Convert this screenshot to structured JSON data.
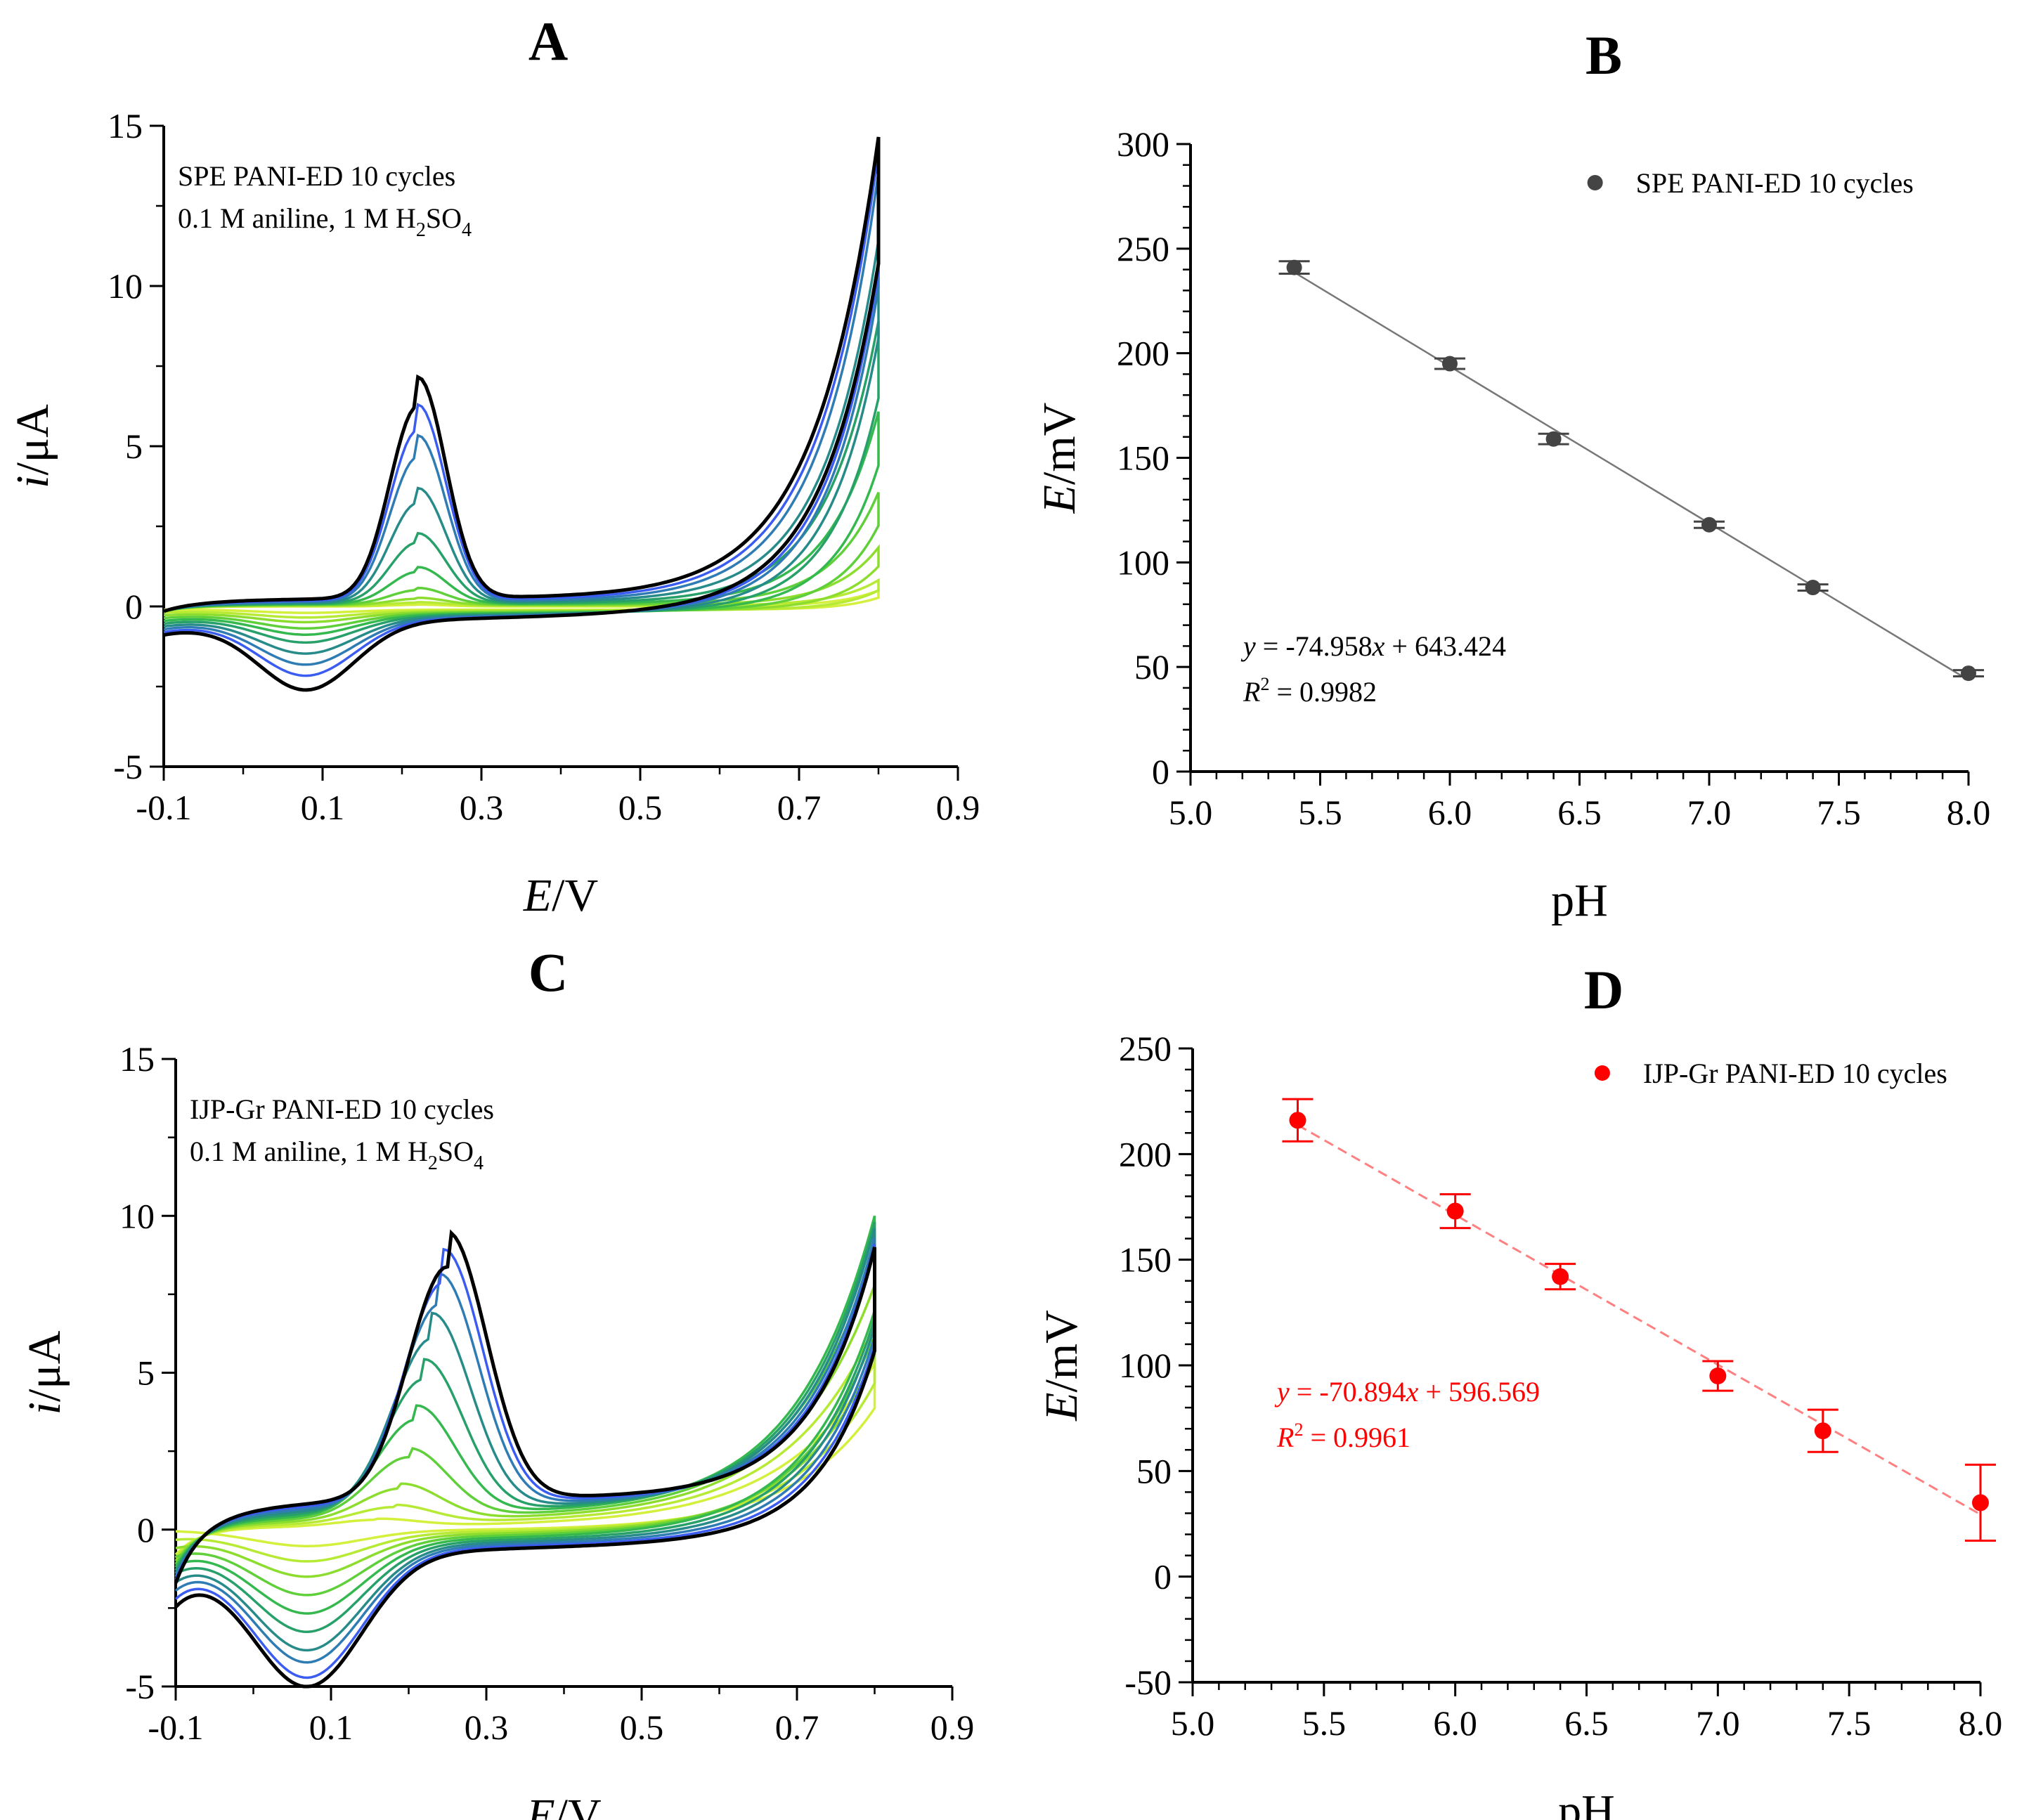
{
  "chart_data": [
    {
      "panel": "A",
      "type": "line",
      "title": "A",
      "xlabel": {
        "italic": "E",
        "rest": "/V"
      },
      "ylabel": {
        "italic": "i",
        "rest": "/μA"
      },
      "xlim": [
        -0.1,
        0.9
      ],
      "ylim": [
        -5,
        15
      ],
      "xticks": [
        "-0.1",
        "0.1",
        "0.3",
        "0.5",
        "0.7",
        "0.9"
      ],
      "yticks": [
        "-5",
        "0",
        "5",
        "10",
        "15"
      ],
      "annotation_line1": "SPE PANI-ED 10 cycles",
      "annotation_line2_pre": "0.1 M aniline, 1 M H",
      "annotation_sub1": "2",
      "annotation_mid": "SO",
      "annotation_sub2": "4",
      "scan_range_V": [
        -0.1,
        0.8
      ],
      "cycles": [
        1,
        2,
        3,
        4,
        5,
        6,
        7,
        8,
        9,
        10
      ],
      "anodic_peak_E_V": 0.22,
      "anodic_peak_uA": [
        0.05,
        0.1,
        0.2,
        0.45,
        1.0,
        1.9,
        3.1,
        4.5,
        5.3,
        6.0
      ],
      "cathodic_peak_E_V": 0.08,
      "cathodic_peak_uA": [
        -0.1,
        -0.2,
        -0.3,
        -0.45,
        -0.6,
        -0.8,
        -1.1,
        -1.4,
        -1.7,
        -2.1
      ],
      "current_at_0_8V_uA": [
        0.5,
        0.8,
        1.8,
        3.5,
        6.0,
        8.8,
        11.3,
        13.4,
        14.0,
        14.4
      ],
      "plateau_uA": [
        0.0,
        0.02,
        0.04,
        0.06,
        0.08,
        0.1,
        0.13,
        0.16,
        0.2,
        0.25
      ],
      "colors": [
        "#d4f03c",
        "#b6ea34",
        "#8ddd2e",
        "#5fcf3a",
        "#35b94f",
        "#27a06a",
        "#278b8a",
        "#2f7cb4",
        "#3b5cf0",
        "#000000"
      ]
    },
    {
      "panel": "B",
      "type": "scatter",
      "title": "B",
      "xlabel": "pH",
      "ylabel": {
        "italic": "E",
        "rest": "/mV"
      },
      "xlim": [
        5.0,
        8.0
      ],
      "ylim": [
        0,
        300
      ],
      "xticks": [
        "5.0",
        "5.5",
        "6.0",
        "6.5",
        "7.0",
        "7.5",
        "8.0"
      ],
      "yticks": [
        "0",
        "50",
        "100",
        "150",
        "200",
        "250",
        "300"
      ],
      "legend": "SPE PANI-ED 10 cycles",
      "legend_position": "top-right",
      "x": [
        5.4,
        6.0,
        6.4,
        7.0,
        7.4,
        8.0
      ],
      "y": [
        241,
        195,
        159,
        118,
        88,
        47
      ],
      "yerr": [
        3,
        2.5,
        2.5,
        1.5,
        1.5,
        1.5
      ],
      "fit": {
        "slope": -74.958,
        "intercept": 643.424
      },
      "equation_y": "y",
      "equation_rest": " = -74.958",
      "equation_x": "x",
      "equation_tail": " + 643.424",
      "r2_label": "R",
      "r2_sup": "2",
      "r2_value": " = 0.9982",
      "color": "#444444",
      "fit_color": "#777777"
    },
    {
      "panel": "C",
      "type": "line",
      "title": "C",
      "xlabel": {
        "italic": "E",
        "rest": "/V"
      },
      "ylabel": {
        "italic": "i",
        "rest": "/μA"
      },
      "xlim": [
        -0.1,
        0.9
      ],
      "ylim": [
        -5,
        15
      ],
      "xticks": [
        "-0.1",
        "0.1",
        "0.3",
        "0.5",
        "0.7",
        "0.9"
      ],
      "yticks": [
        "-5",
        "0",
        "5",
        "10",
        "15"
      ],
      "annotation_line1": "IJP-Gr PANI-ED 10 cycles",
      "annotation_line2_pre": "0.1 M aniline, 1 M H",
      "annotation_sub1": "2",
      "annotation_mid": "SO",
      "annotation_sub2": "4",
      "scan_range_V": [
        -0.1,
        0.8
      ],
      "cycles": [
        1,
        2,
        3,
        4,
        5,
        6,
        7,
        8,
        9,
        10
      ],
      "anodic_peak_E_V": [
        0.16,
        0.18,
        0.19,
        0.2,
        0.21,
        0.22,
        0.23,
        0.24,
        0.245,
        0.25
      ],
      "anodic_peak_uA": [
        0.2,
        0.5,
        1.0,
        1.9,
        3.0,
        4.2,
        5.4,
        6.4,
        7.0,
        7.4
      ],
      "cathodic_peak_E_V": 0.07,
      "cathodic_peak_uA": [
        -0.5,
        -0.9,
        -1.3,
        -1.8,
        -2.3,
        -2.8,
        -3.3,
        -3.6,
        -4.0,
        -4.2
      ],
      "current_at_0_8V_uA": [
        5.2,
        6.3,
        7.5,
        8.5,
        9.5,
        9.2,
        8.9,
        8.5,
        8.2,
        8.0
      ],
      "plateau_uA": [
        0.1,
        0.2,
        0.3,
        0.4,
        0.5,
        0.6,
        0.7,
        0.8,
        0.9,
        1.0
      ],
      "colors": [
        "#d4f03c",
        "#b6ea34",
        "#8ddd2e",
        "#5fcf3a",
        "#35b94f",
        "#27a06a",
        "#278b8a",
        "#2f7cb4",
        "#3b5cf0",
        "#000000"
      ]
    },
    {
      "panel": "D",
      "type": "scatter",
      "title": "D",
      "xlabel": "pH",
      "ylabel": {
        "italic": "E",
        "rest": "/mV"
      },
      "xlim": [
        5.0,
        8.0
      ],
      "ylim": [
        -50,
        250
      ],
      "xticks": [
        "5.0",
        "5.5",
        "6.0",
        "6.5",
        "7.0",
        "7.5",
        "8.0"
      ],
      "yticks": [
        "-50",
        "0",
        "50",
        "100",
        "150",
        "200",
        "250"
      ],
      "legend": "IJP-Gr PANI-ED 10 cycles",
      "legend_position": "top-right",
      "x": [
        5.4,
        6.0,
        6.4,
        7.0,
        7.4,
        8.0
      ],
      "y": [
        216,
        173,
        142,
        95,
        69,
        35
      ],
      "yerr": [
        10,
        8,
        6,
        7,
        10,
        18
      ],
      "fit": {
        "slope": -70.894,
        "intercept": 596.569
      },
      "equation_y": "y",
      "equation_rest": " = -70.894",
      "equation_x": "x",
      "equation_tail": " + 596.569",
      "r2_label": "R",
      "r2_sup": "2",
      "r2_value": " = 0.9961",
      "color": "#ff0000",
      "fit_color": "#ff8080"
    }
  ]
}
